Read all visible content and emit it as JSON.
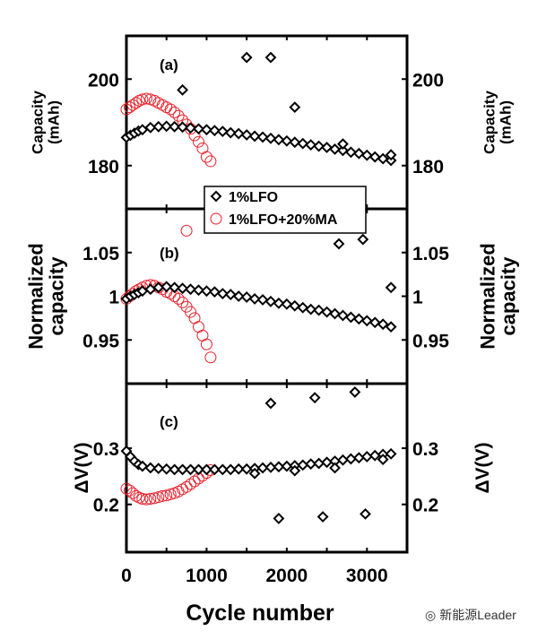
{
  "chart_data": [
    {
      "type": "scatter",
      "panel_label": "(a)",
      "ylabel": "Capacity (mAh)",
      "ylabel_lines": [
        "Capacity",
        "(mAh)"
      ],
      "ylim": [
        170,
        210
      ],
      "yticks": [
        180,
        200
      ],
      "xlim": [
        0,
        3500
      ],
      "series": [
        {
          "name": "1%LFO",
          "marker": "diamond",
          "color": "#000000",
          "x": [
            0,
            50,
            100,
            150,
            200,
            300,
            400,
            500,
            600,
            700,
            800,
            900,
            1000,
            1100,
            1200,
            1300,
            1400,
            1500,
            1600,
            1700,
            1800,
            1900,
            2000,
            2100,
            2200,
            2300,
            2400,
            2500,
            2600,
            2700,
            2800,
            2900,
            3000,
            3100,
            3200,
            3300,
            700,
            1500,
            1800,
            2100,
            2700,
            3300
          ],
          "y": [
            186.5,
            187,
            187.5,
            188,
            188.3,
            188.8,
            189,
            189.1,
            189,
            188.9,
            188.7,
            188.5,
            188.3,
            188.1,
            187.9,
            187.6,
            187.4,
            187.1,
            186.8,
            186.6,
            186.3,
            186,
            185.7,
            185.4,
            185.1,
            184.8,
            184.5,
            184.2,
            183.8,
            183.5,
            183.1,
            182.8,
            182.4,
            182,
            181.6,
            181.2,
            197.5,
            205,
            205,
            193.5,
            185,
            182.5
          ]
        },
        {
          "name": "1%LFO+20%MA",
          "marker": "circle",
          "color": "#e8202a",
          "x": [
            0,
            40,
            80,
            120,
            160,
            200,
            250,
            300,
            350,
            400,
            450,
            500,
            550,
            600,
            650,
            700,
            750,
            800,
            850,
            900,
            950,
            1000,
            1050
          ],
          "y": [
            193,
            193.5,
            194,
            194.5,
            195,
            195.3,
            195.5,
            195.3,
            195,
            194.5,
            194,
            193.5,
            193,
            192.3,
            191.5,
            190.5,
            189.5,
            188.5,
            187,
            185.5,
            184,
            182,
            181
          ]
        }
      ]
    },
    {
      "type": "scatter",
      "panel_label": "(b)",
      "ylabel": "Normalized capacity",
      "ylabel_lines": [
        "Normalized",
        "capacity"
      ],
      "ylim": [
        0.9,
        1.1
      ],
      "yticks": [
        0.95,
        1,
        1.05
      ],
      "ytick_labels": [
        "0.95",
        "1",
        "1.05"
      ],
      "xlim": [
        0,
        3500
      ],
      "series": [
        {
          "name": "1%LFO",
          "marker": "diamond",
          "color": "#000000",
          "x": [
            0,
            50,
            100,
            150,
            200,
            300,
            400,
            500,
            600,
            700,
            800,
            900,
            1000,
            1100,
            1200,
            1300,
            1400,
            1500,
            1600,
            1700,
            1800,
            1900,
            2000,
            2100,
            2200,
            2300,
            2400,
            2500,
            2600,
            2700,
            2800,
            2900,
            3000,
            3100,
            3200,
            3300,
            2650,
            2950,
            3300
          ],
          "y": [
            0.997,
            1,
            1.002,
            1.004,
            1.006,
            1.008,
            1.01,
            1.011,
            1.01,
            1.009,
            1.008,
            1.007,
            1.006,
            1.005,
            1.003,
            1.002,
            1,
            0.999,
            0.997,
            0.996,
            0.994,
            0.992,
            0.991,
            0.989,
            0.987,
            0.985,
            0.984,
            0.982,
            0.98,
            0.978,
            0.976,
            0.974,
            0.972,
            0.97,
            0.968,
            0.965,
            1.06,
            1.065,
            1.01
          ]
        },
        {
          "name": "1%LFO+20%MA",
          "marker": "circle",
          "color": "#e8202a",
          "x": [
            0,
            40,
            80,
            120,
            160,
            200,
            250,
            300,
            350,
            400,
            450,
            500,
            550,
            600,
            650,
            700,
            750,
            800,
            850,
            900,
            950,
            1000,
            1050,
            750
          ],
          "y": [
            0.997,
            1,
            1.003,
            1.006,
            1.008,
            1.01,
            1.012,
            1.013,
            1.012,
            1.01,
            1.008,
            1.005,
            1.003,
            1,
            0.997,
            0.993,
            0.988,
            0.982,
            0.975,
            0.965,
            0.955,
            0.945,
            0.93,
            1.075
          ]
        }
      ]
    },
    {
      "type": "scatter",
      "panel_label": "(c)",
      "ylabel": "ΔV(V)",
      "ylim": [
        0.115,
        0.415
      ],
      "yticks": [
        0.2,
        0.3
      ],
      "xlabel": "Cycle number",
      "xticks": [
        0,
        1000,
        2000,
        3000
      ],
      "xlim": [
        0,
        3500
      ],
      "series": [
        {
          "name": "1%LFO",
          "marker": "diamond",
          "color": "#000000",
          "x": [
            0,
            50,
            100,
            150,
            200,
            300,
            400,
            500,
            600,
            700,
            800,
            900,
            1000,
            1100,
            1200,
            1300,
            1400,
            1500,
            1600,
            1700,
            1800,
            1900,
            2000,
            2100,
            2200,
            2300,
            2400,
            2500,
            2600,
            2700,
            2800,
            2900,
            3000,
            3100,
            3200,
            3300,
            1600,
            2100,
            2600,
            3200,
            1800,
            2350,
            2850,
            1900,
            2450,
            2980
          ],
          "y": [
            0.295,
            0.285,
            0.277,
            0.271,
            0.268,
            0.265,
            0.264,
            0.263,
            0.262,
            0.262,
            0.262,
            0.262,
            0.262,
            0.262,
            0.262,
            0.262,
            0.263,
            0.263,
            0.264,
            0.265,
            0.266,
            0.267,
            0.268,
            0.269,
            0.27,
            0.272,
            0.273,
            0.275,
            0.277,
            0.279,
            0.281,
            0.283,
            0.285,
            0.287,
            0.289,
            0.29,
            0.255,
            0.26,
            0.265,
            0.28,
            0.38,
            0.39,
            0.4,
            0.175,
            0.178,
            0.183
          ]
        },
        {
          "name": "1%LFO+20%MA",
          "marker": "circle",
          "color": "#e8202a",
          "x": [
            0,
            40,
            80,
            120,
            160,
            200,
            250,
            300,
            350,
            400,
            450,
            500,
            550,
            600,
            650,
            700,
            750,
            800,
            850,
            900,
            950,
            1000,
            1050
          ],
          "y": [
            0.228,
            0.225,
            0.22,
            0.215,
            0.212,
            0.21,
            0.209,
            0.21,
            0.211,
            0.213,
            0.215,
            0.216,
            0.218,
            0.22,
            0.223,
            0.227,
            0.231,
            0.236,
            0.241,
            0.246,
            0.251,
            0.256,
            0.261
          ]
        }
      ]
    }
  ],
  "legend": [
    "1%LFO",
    "1%LFO+20%MA"
  ],
  "watermark": "新能源Leader"
}
